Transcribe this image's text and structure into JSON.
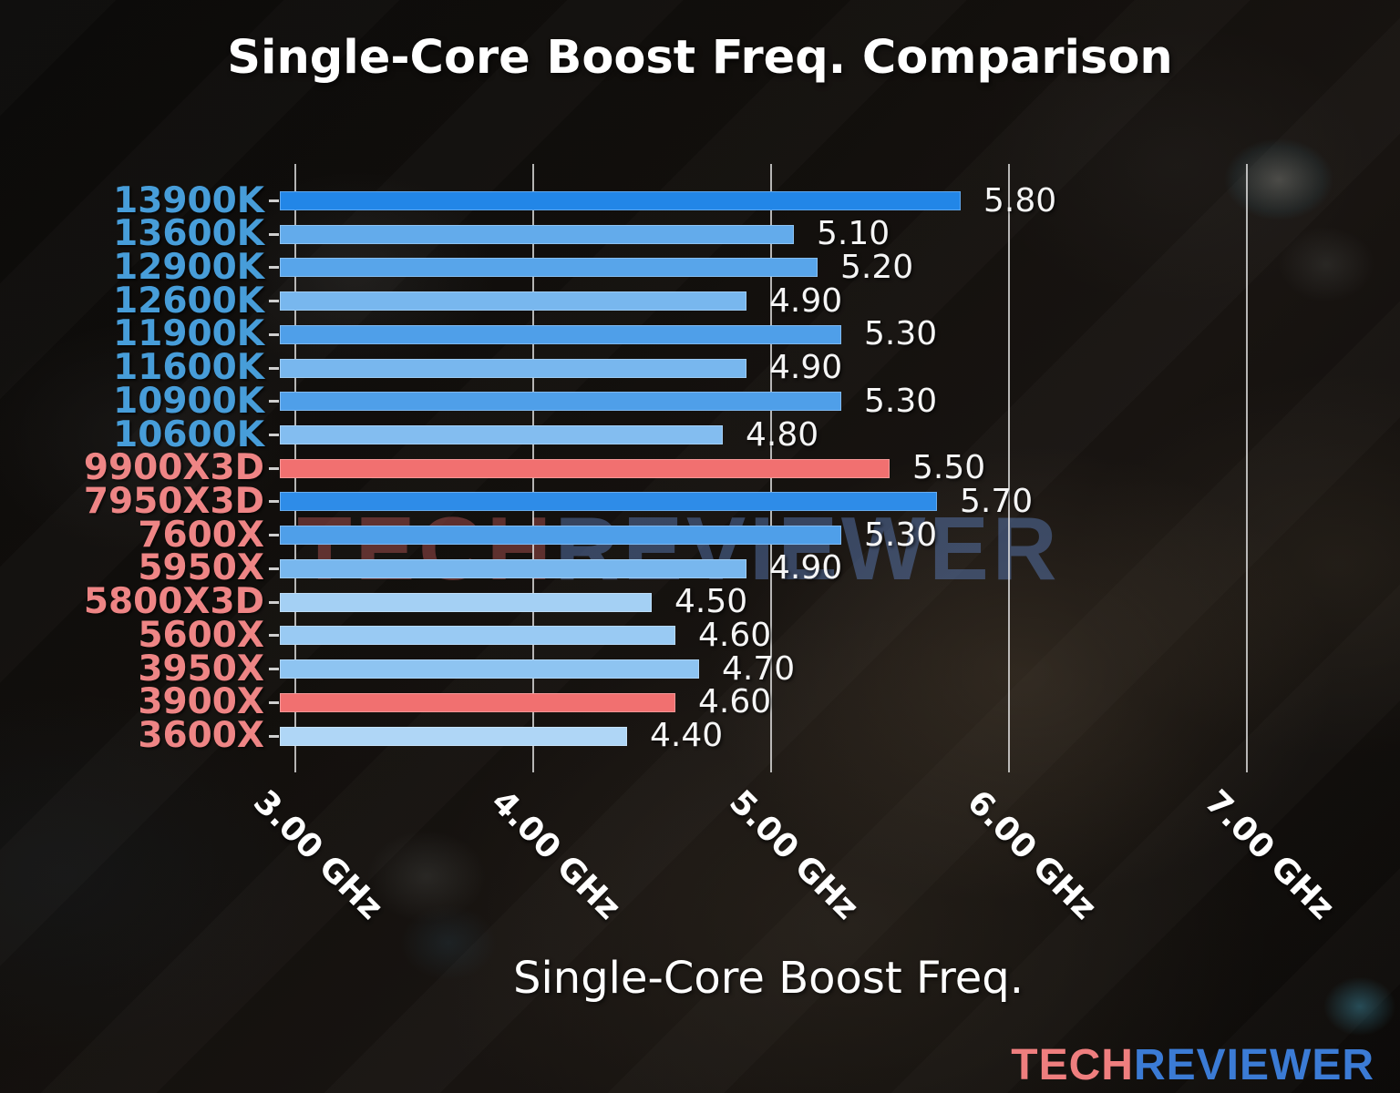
{
  "title": "Single-Core Boost Freq. Comparison",
  "chart_data": {
    "type": "bar",
    "orientation": "horizontal",
    "title": "Single-Core Boost Freq. Comparison",
    "xlabel": "Single-Core Boost Freq.",
    "x_unit": "GHz",
    "xlim": [
      2.94,
      7.4
    ],
    "grid": true,
    "x_ticks": [
      {
        "value": 3,
        "label": "3.00 GHz"
      },
      {
        "value": 4,
        "label": "4.00 GHz"
      },
      {
        "value": 5,
        "label": "5.00 GHz"
      },
      {
        "value": 6,
        "label": "6.00 GHz"
      },
      {
        "value": 7,
        "label": "7.00 GHz"
      }
    ],
    "bars": [
      {
        "label": "13900K",
        "brand": "intel",
        "value": 5.8,
        "value_label": "5.80",
        "bar_color": "#2286e7",
        "label_color": "#479dd9"
      },
      {
        "label": "13600K",
        "brand": "intel",
        "value": 5.1,
        "value_label": "5.10",
        "bar_color": "#63abeb",
        "label_color": "#479dd9"
      },
      {
        "label": "12900K",
        "brand": "intel",
        "value": 5.2,
        "value_label": "5.20",
        "bar_color": "#58a5ea",
        "label_color": "#479dd9"
      },
      {
        "label": "12600K",
        "brand": "intel",
        "value": 4.9,
        "value_label": "4.90",
        "bar_color": "#78b7ee",
        "label_color": "#479dd9"
      },
      {
        "label": "11900K",
        "brand": "intel",
        "value": 5.3,
        "value_label": "5.30",
        "bar_color": "#4f9fe9",
        "label_color": "#479dd9"
      },
      {
        "label": "11600K",
        "brand": "intel",
        "value": 4.9,
        "value_label": "4.90",
        "bar_color": "#78b7ee",
        "label_color": "#479dd9"
      },
      {
        "label": "10900K",
        "brand": "intel",
        "value": 5.3,
        "value_label": "5.30",
        "bar_color": "#4f9fe9",
        "label_color": "#479dd9"
      },
      {
        "label": "10600K",
        "brand": "intel",
        "value": 4.8,
        "value_label": "4.80",
        "bar_color": "#83bdf0",
        "label_color": "#479dd9"
      },
      {
        "label": "9900X3D",
        "brand": "amd",
        "value": 5.5,
        "value_label": "5.50",
        "bar_color": "#f17070",
        "label_color": "#ee8585"
      },
      {
        "label": "7950X3D",
        "brand": "amd",
        "value": 5.7,
        "value_label": "5.70",
        "bar_color": "#2e8ce8",
        "label_color": "#ee8585"
      },
      {
        "label": "7600X",
        "brand": "amd",
        "value": 5.3,
        "value_label": "5.30",
        "bar_color": "#4f9fe9",
        "label_color": "#ee8585"
      },
      {
        "label": "5950X",
        "brand": "amd",
        "value": 4.9,
        "value_label": "4.90",
        "bar_color": "#78b7ee",
        "label_color": "#ee8585"
      },
      {
        "label": "5800X3D",
        "brand": "amd",
        "value": 4.5,
        "value_label": "4.50",
        "bar_color": "#a4d0f4",
        "label_color": "#ee8585"
      },
      {
        "label": "5600X",
        "brand": "amd",
        "value": 4.6,
        "value_label": "4.60",
        "bar_color": "#99caf3",
        "label_color": "#ee8585"
      },
      {
        "label": "3950X",
        "brand": "amd",
        "value": 4.7,
        "value_label": "4.70",
        "bar_color": "#8ec4f1",
        "label_color": "#ee8585"
      },
      {
        "label": "3900X",
        "brand": "amd",
        "value": 4.6,
        "value_label": "4.60",
        "bar_color": "#f17070",
        "label_color": "#ee8585"
      },
      {
        "label": "3600X",
        "brand": "amd",
        "value": 4.4,
        "value_label": "4.40",
        "bar_color": "#afd6f6",
        "label_color": "#ee8585"
      }
    ]
  },
  "watermark": {
    "part1": "TECH",
    "part2": "REVIEWER",
    "part1_color": "rgba(170,80,80,0.50)",
    "part2_color": "rgba(92,126,186,0.48)"
  },
  "logo": {
    "part1": "TECH",
    "part2": "REVIEWER",
    "part1_color": "#ef7e7e",
    "part2_color": "#3b7bd5"
  }
}
